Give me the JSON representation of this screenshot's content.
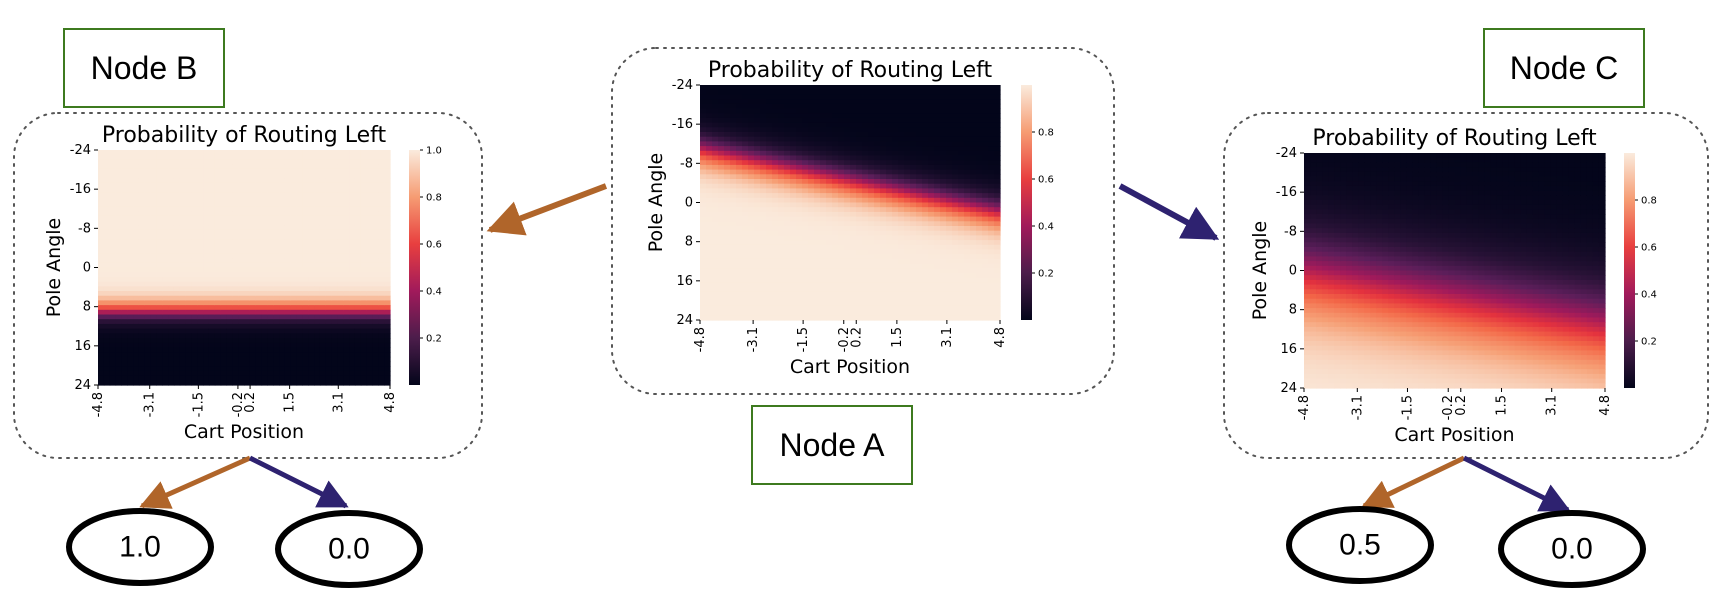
{
  "nodes": {
    "A": {
      "label": "Node A"
    },
    "B": {
      "label": "Node B"
    },
    "C": {
      "label": "Node C"
    }
  },
  "leaves": {
    "B_left": "1.0",
    "B_right": "0.0",
    "C_left": "0.5",
    "C_right": "0.0"
  },
  "colors": {
    "left_arrow": "#b0652a",
    "right_arrow": "#2e2270",
    "node_box_border": "#3d7a1f",
    "panel_border": "#555555"
  },
  "colormap": "rocket",
  "chart_data": [
    {
      "node": "Node A",
      "type": "heatmap",
      "title": "Probability of Routing Left",
      "xlabel": "Cart Position",
      "ylabel": "Pole Angle",
      "x_ticks": [
        "-4.8",
        "-3.1",
        "-1.5",
        "-0.2",
        "0.2",
        "1.5",
        "3.1",
        "4.8"
      ],
      "y_ticks": [
        "-24",
        "-16",
        "-8",
        "0",
        "8",
        "16",
        "24"
      ],
      "xlim": [
        -4.8,
        4.8
      ],
      "ylim": [
        -24,
        24
      ],
      "colorbar_ticks": [
        "0.2",
        "0.4",
        "0.6",
        "0.8"
      ],
      "colorbar_range": [
        0,
        1
      ],
      "boundary": {
        "center_at_x_min": -11,
        "center_at_x_max": 2,
        "width": 2.0,
        "increasing_downward": true
      }
    },
    {
      "node": "Node B",
      "type": "heatmap",
      "title": "Probability of Routing Left",
      "xlabel": "Cart Position",
      "ylabel": "Pole Angle",
      "x_ticks": [
        "-4.8",
        "-3.1",
        "-1.5",
        "-0.2",
        "0.2",
        "1.5",
        "3.1",
        "4.8"
      ],
      "y_ticks": [
        "-24",
        "-16",
        "-8",
        "0",
        "8",
        "16",
        "24"
      ],
      "xlim": [
        -4.8,
        4.8
      ],
      "ylim": [
        -24,
        24
      ],
      "colorbar_ticks": [
        "0.2",
        "0.4",
        "0.6",
        "0.8",
        "1.0"
      ],
      "colorbar_range": [
        0,
        1
      ],
      "boundary": {
        "center_at_x_min": 9,
        "center_at_x_max": 9,
        "width": 1.2,
        "increasing_downward": false
      }
    },
    {
      "node": "Node C",
      "type": "heatmap",
      "title": "Probability of Routing Left",
      "xlabel": "Cart Position",
      "ylabel": "Pole Angle",
      "x_ticks": [
        "-4.8",
        "-3.1",
        "-1.5",
        "-0.2",
        "0.2",
        "1.5",
        "3.1",
        "4.8"
      ],
      "y_ticks": [
        "-24",
        "-16",
        "-8",
        "0",
        "8",
        "16",
        "24"
      ],
      "xlim": [
        -4.8,
        4.8
      ],
      "ylim": [
        -24,
        24
      ],
      "colorbar_ticks": [
        "0.2",
        "0.4",
        "0.6",
        "0.8"
      ],
      "colorbar_range": [
        0,
        1
      ],
      "boundary": {
        "center_at_x_min": 0,
        "center_at_x_max": 11,
        "width": 5.5,
        "increasing_downward": true
      }
    }
  ]
}
